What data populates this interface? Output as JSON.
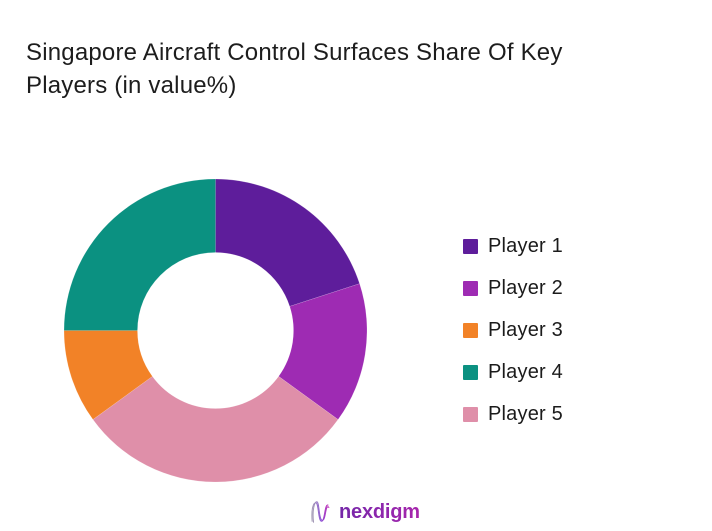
{
  "title": "Singapore Aircraft Control Surfaces Share Of Key Players (in value%)",
  "chart_data": {
    "type": "pie",
    "subtype": "donut",
    "title": "Singapore Aircraft Control Surfaces Share Of Key Players (in value%)",
    "unit": "value %",
    "legend_position": "right",
    "start_angle_deg": 0,
    "direction": "clockwise",
    "inner_radius_ratio": 0.515,
    "segments": [
      {
        "label": "Player 1",
        "value": 20,
        "color": "#5e1d9b"
      },
      {
        "label": "Player 2",
        "value": 15,
        "color": "#9e2bb3"
      },
      {
        "label": "Player 3",
        "value": 10,
        "color": "#f28227"
      },
      {
        "label": "Player 4",
        "value": 25,
        "color": "#0b9181"
      },
      {
        "label": "Player 5",
        "value": 30,
        "color": "#df8fa9"
      }
    ],
    "draw_order": [
      "Player 1",
      "Player 2",
      "Player 5",
      "Player 3",
      "Player 4"
    ]
  },
  "logo": {
    "text": "nexdigm",
    "color": "#8f27ad"
  }
}
